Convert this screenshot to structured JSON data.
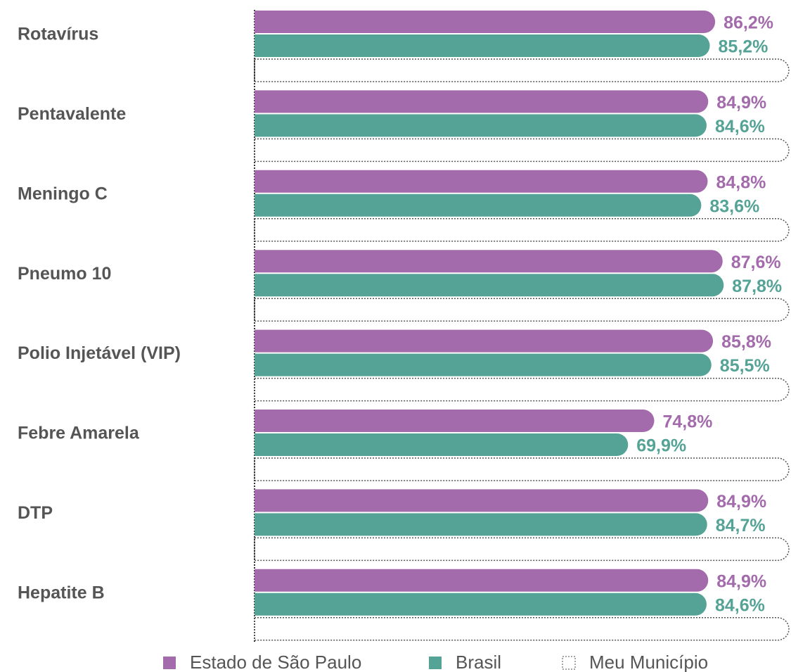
{
  "chart_data": {
    "type": "bar",
    "orientation": "horizontal",
    "categories": [
      "Rotavírus",
      "Pentavalente",
      "Meningo C",
      "Pneumo 10",
      "Polio Injetável (VIP)",
      "Febre Amarela",
      "DTP",
      "Hepatite B"
    ],
    "series": [
      {
        "name": "Estado de São Paulo",
        "color": "#a36bab",
        "values": [
          86.2,
          84.9,
          84.8,
          87.6,
          85.8,
          74.8,
          84.9,
          84.9
        ],
        "value_labels": [
          "86,2%",
          "84,9%",
          "84,8%",
          "87,6%",
          "85,8%",
          "74,8%",
          "84,9%",
          "84,9%"
        ]
      },
      {
        "name": "Brasil",
        "color": "#55a396",
        "values": [
          85.2,
          84.6,
          83.6,
          87.8,
          85.5,
          69.9,
          84.7,
          84.6
        ],
        "value_labels": [
          "85,2%",
          "84,6%",
          "83,6%",
          "87,8%",
          "85,5%",
          "69,9%",
          "84,7%",
          "84,6%"
        ]
      },
      {
        "name": "Meu Município",
        "color": "#555555",
        "values": [
          null,
          null,
          null,
          null,
          null,
          null,
          null,
          null
        ]
      }
    ],
    "xlim": [
      0,
      100
    ]
  }
}
